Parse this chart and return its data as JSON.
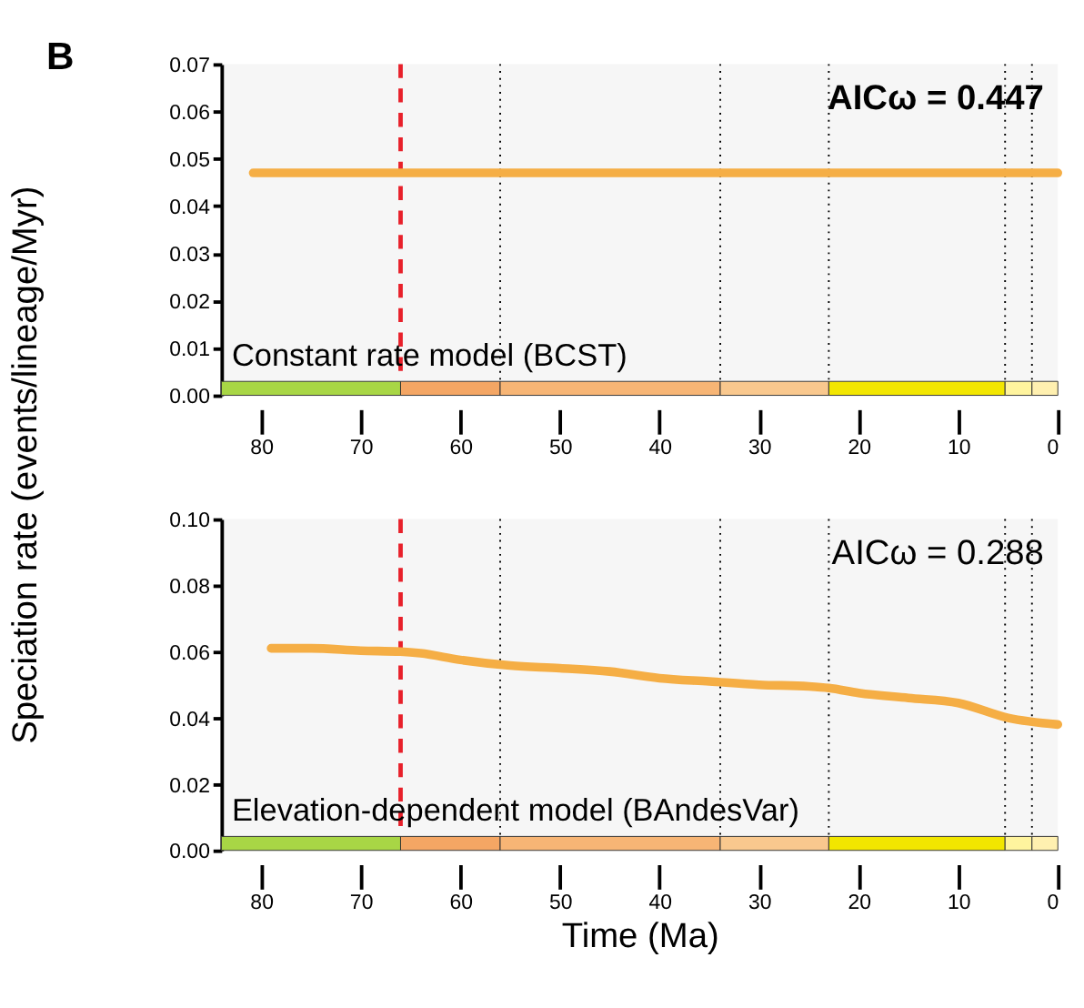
{
  "chart_data": [
    {
      "type": "line",
      "title": "B",
      "xlim": [
        84,
        0
      ],
      "xticks": [
        80,
        70,
        60,
        50,
        40,
        30,
        20,
        10,
        0
      ],
      "ylim": [
        0,
        0.07
      ],
      "yticks": [
        {
          "value": 0,
          "label": "0.00"
        },
        {
          "value": 0.01,
          "label": "0.01"
        },
        {
          "value": 0.02,
          "label": "0.02"
        },
        {
          "value": 0.03,
          "label": "0.03"
        },
        {
          "value": 0.04,
          "label": "0.04"
        },
        {
          "value": 0.05,
          "label": "0.05"
        },
        {
          "value": 0.06,
          "label": "0.06"
        },
        {
          "value": 0.07,
          "label": "0.07"
        }
      ],
      "grid": false,
      "line_style": "solid",
      "marker": "none",
      "series": [
        {
          "color": "#f5ae45",
          "x": [
            80.8,
            0
          ],
          "values": [
            0.047,
            0.047
          ]
        }
      ],
      "annotations": [
        "AICω = 0.447",
        "Constant rate model (BCST)"
      ],
      "ref_lines": [
        {
          "axis": "x",
          "value": 66,
          "label": null,
          "color": "#e8202a",
          "line_style": "dashed"
        },
        {
          "axis": "x",
          "value": 56,
          "label": null,
          "color": "#000000",
          "line_style": "dotted"
        },
        {
          "axis": "x",
          "value": 33.9,
          "label": null,
          "color": "#000000",
          "line_style": "dotted"
        },
        {
          "axis": "x",
          "value": 23,
          "label": null,
          "color": "#000000",
          "line_style": "dotted"
        },
        {
          "axis": "x",
          "value": 5.3,
          "label": null,
          "color": "#000000",
          "line_style": "dotted"
        },
        {
          "axis": "x",
          "value": 2.6,
          "label": null,
          "color": "#000000",
          "line_style": "dotted"
        }
      ],
      "bands": [
        {
          "axis": "x",
          "from": 84,
          "to": 66,
          "label": null,
          "color": "#a8d645"
        },
        {
          "axis": "x",
          "from": 66,
          "to": 56,
          "label": null,
          "color": "#f4a664"
        },
        {
          "axis": "x",
          "from": 56,
          "to": 33.9,
          "label": null,
          "color": "#f7b575"
        },
        {
          "axis": "x",
          "from": 33.9,
          "to": 23,
          "label": null,
          "color": "#f9c88e"
        },
        {
          "axis": "x",
          "from": 23,
          "to": 5.3,
          "label": null,
          "color": "#f2e600"
        },
        {
          "axis": "x",
          "from": 5.3,
          "to": 2.6,
          "label": null,
          "color": "#fff49e"
        },
        {
          "axis": "x",
          "from": 2.6,
          "to": 0,
          "label": null,
          "color": "#fff0b0"
        }
      ]
    },
    {
      "type": "line",
      "xlabel": "Time (Ma)",
      "ylabel": "Speciation rate (events/lineage/Myr)",
      "xlim": [
        84,
        0
      ],
      "xticks": [
        80,
        70,
        60,
        50,
        40,
        30,
        20,
        10,
        0
      ],
      "ylim": [
        0,
        0.1
      ],
      "yticks": [
        {
          "value": 0,
          "label": "0.00"
        },
        {
          "value": 0.02,
          "label": "0.02"
        },
        {
          "value": 0.04,
          "label": "0.04"
        },
        {
          "value": 0.06,
          "label": "0.06"
        },
        {
          "value": 0.08,
          "label": "0.08"
        },
        {
          "value": 0.1,
          "label": "0.10"
        }
      ],
      "grid": false,
      "line_style": "solid",
      "marker": "none",
      "series": [
        {
          "color": "#f5ae45",
          "x": [
            79,
            75,
            70,
            66,
            64,
            60,
            55,
            50,
            45,
            40,
            35,
            30,
            25,
            23,
            20,
            15,
            10,
            5,
            0
          ],
          "values": [
            0.061,
            0.061,
            0.0603,
            0.06,
            0.0595,
            0.0575,
            0.0558,
            0.055,
            0.054,
            0.052,
            0.051,
            0.05,
            0.0495,
            0.049,
            0.0475,
            0.046,
            0.0445,
            0.04,
            0.038
          ]
        }
      ],
      "annotations": [
        "AICω = 0.288",
        "Elevation-dependent model (BAndesVar)"
      ],
      "ref_lines": [
        {
          "axis": "x",
          "value": 66,
          "label": null,
          "color": "#e8202a",
          "line_style": "dashed"
        },
        {
          "axis": "x",
          "value": 56,
          "label": null,
          "color": "#000000",
          "line_style": "dotted"
        },
        {
          "axis": "x",
          "value": 33.9,
          "label": null,
          "color": "#000000",
          "line_style": "dotted"
        },
        {
          "axis": "x",
          "value": 23,
          "label": null,
          "color": "#000000",
          "line_style": "dotted"
        },
        {
          "axis": "x",
          "value": 5.3,
          "label": null,
          "color": "#000000",
          "line_style": "dotted"
        },
        {
          "axis": "x",
          "value": 2.6,
          "label": null,
          "color": "#000000",
          "line_style": "dotted"
        }
      ],
      "bands": [
        {
          "axis": "x",
          "from": 84,
          "to": 66,
          "label": null,
          "color": "#a8d645"
        },
        {
          "axis": "x",
          "from": 66,
          "to": 56,
          "label": null,
          "color": "#f4a664"
        },
        {
          "axis": "x",
          "from": 56,
          "to": 33.9,
          "label": null,
          "color": "#f7b575"
        },
        {
          "axis": "x",
          "from": 33.9,
          "to": 23,
          "label": null,
          "color": "#f9c88e"
        },
        {
          "axis": "x",
          "from": 23,
          "to": 5.3,
          "label": null,
          "color": "#f2e600"
        },
        {
          "axis": "x",
          "from": 5.3,
          "to": 2.6,
          "label": null,
          "color": "#fff49e"
        },
        {
          "axis": "x",
          "from": 2.6,
          "to": 0,
          "label": null,
          "color": "#fff0b0"
        }
      ]
    }
  ]
}
